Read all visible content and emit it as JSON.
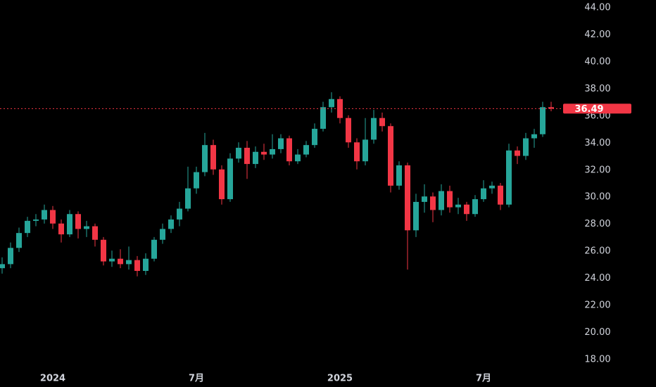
{
  "chart_data": {
    "type": "candlestick",
    "categories": [
      null,
      null,
      null,
      null,
      null,
      null,
      "2024",
      null,
      null,
      null,
      null,
      null,
      null,
      null,
      null,
      null,
      null,
      null,
      null,
      null,
      null,
      null,
      null,
      "7月",
      null,
      null,
      null,
      null,
      null,
      null,
      null,
      null,
      null,
      null,
      null,
      null,
      null,
      null,
      null,
      null,
      "2025",
      null,
      null,
      null,
      null,
      null,
      null,
      null,
      null,
      null,
      null,
      null,
      null,
      null,
      null,
      null,
      null,
      "7月",
      null,
      null,
      null,
      null,
      null,
      null,
      null,
      null
    ],
    "open": [
      24.7,
      25.0,
      26.2,
      27.3,
      28.2,
      28.3,
      29.0,
      28.0,
      27.2,
      28.7,
      27.6,
      27.8,
      26.8,
      25.2,
      25.4,
      25.0,
      25.3,
      24.5,
      25.4,
      26.8,
      27.6,
      28.3,
      29.1,
      30.6,
      31.8,
      33.8,
      32.0,
      29.8,
      32.8,
      33.6,
      32.4,
      33.3,
      33.1,
      33.5,
      34.3,
      32.6,
      33.1,
      33.8,
      35.0,
      36.6,
      37.2,
      35.8,
      34.0,
      32.6,
      34.2,
      35.8,
      35.2,
      30.8,
      32.3,
      27.5,
      29.6,
      30.0,
      29.0,
      30.4,
      29.2,
      29.4,
      28.7,
      29.8,
      30.6,
      30.8,
      29.4,
      33.4,
      33.0,
      34.3,
      34.6,
      36.6
    ],
    "high": [
      25.5,
      26.6,
      27.7,
      28.5,
      28.7,
      29.4,
      29.3,
      28.3,
      29.0,
      28.9,
      28.2,
      28.0,
      27.0,
      26.0,
      26.1,
      26.3,
      25.6,
      25.8,
      27.0,
      28.0,
      28.6,
      29.6,
      32.2,
      32.2,
      34.7,
      34.2,
      32.3,
      33.2,
      34.0,
      34.1,
      33.7,
      33.9,
      34.6,
      34.6,
      34.5,
      33.5,
      34.1,
      35.4,
      37.0,
      37.7,
      37.4,
      36.0,
      34.3,
      35.8,
      36.4,
      36.2,
      35.4,
      32.6,
      32.5,
      30.2,
      30.9,
      30.3,
      30.9,
      30.8,
      29.9,
      29.6,
      30.1,
      31.2,
      31.1,
      31.0,
      33.9,
      33.7,
      34.7,
      35.0,
      37.0,
      37.0
    ],
    "low": [
      24.3,
      24.7,
      25.9,
      27.0,
      27.8,
      28.0,
      27.6,
      26.6,
      27.0,
      26.9,
      27.0,
      26.3,
      24.9,
      24.8,
      24.7,
      24.6,
      24.1,
      24.2,
      25.2,
      26.5,
      27.3,
      27.8,
      28.9,
      30.2,
      31.5,
      31.6,
      29.4,
      29.6,
      32.5,
      31.3,
      32.1,
      32.7,
      32.8,
      33.2,
      32.3,
      32.4,
      32.9,
      33.6,
      34.8,
      36.2,
      35.4,
      33.6,
      32.0,
      32.3,
      33.9,
      34.8,
      30.3,
      30.5,
      24.6,
      27.0,
      28.8,
      28.1,
      28.6,
      28.8,
      28.7,
      28.2,
      28.5,
      29.6,
      30.2,
      29.0,
      29.2,
      32.4,
      32.7,
      33.6,
      34.4,
      36.3
    ],
    "close": [
      25.0,
      26.2,
      27.3,
      28.2,
      28.3,
      29.0,
      28.0,
      27.2,
      28.7,
      27.6,
      27.8,
      26.8,
      25.2,
      25.4,
      25.0,
      25.3,
      24.5,
      25.4,
      26.8,
      27.6,
      28.3,
      29.1,
      30.6,
      31.8,
      33.8,
      32.0,
      29.8,
      32.8,
      33.6,
      32.4,
      33.3,
      33.1,
      33.5,
      34.3,
      32.6,
      33.1,
      33.8,
      35.0,
      36.6,
      37.2,
      35.8,
      34.0,
      32.6,
      34.2,
      35.8,
      35.2,
      30.8,
      32.3,
      27.5,
      29.6,
      30.0,
      29.0,
      30.4,
      29.2,
      29.4,
      28.7,
      29.8,
      30.6,
      30.8,
      29.4,
      33.4,
      33.0,
      34.3,
      34.6,
      36.6,
      36.49
    ],
    "up_color": "#26a69a",
    "down_color": "#f23645",
    "ylim": [
      18,
      44
    ],
    "yticks": [
      {
        "value": 18,
        "label": "18.00"
      },
      {
        "value": 20,
        "label": "20.00"
      },
      {
        "value": 22,
        "label": "22.00"
      },
      {
        "value": 24,
        "label": "24.00"
      },
      {
        "value": 26,
        "label": "26.00"
      },
      {
        "value": 28,
        "label": "28.00"
      },
      {
        "value": 30,
        "label": "30.00"
      },
      {
        "value": 32,
        "label": "32.00"
      },
      {
        "value": 34,
        "label": "34.00"
      },
      {
        "value": 36,
        "label": "36.00"
      },
      {
        "value": 38,
        "label": "38.00"
      },
      {
        "value": 40,
        "label": "40.00"
      },
      {
        "value": 42,
        "label": "42.00"
      },
      {
        "value": 44,
        "label": "44.00"
      }
    ]
  }
}
